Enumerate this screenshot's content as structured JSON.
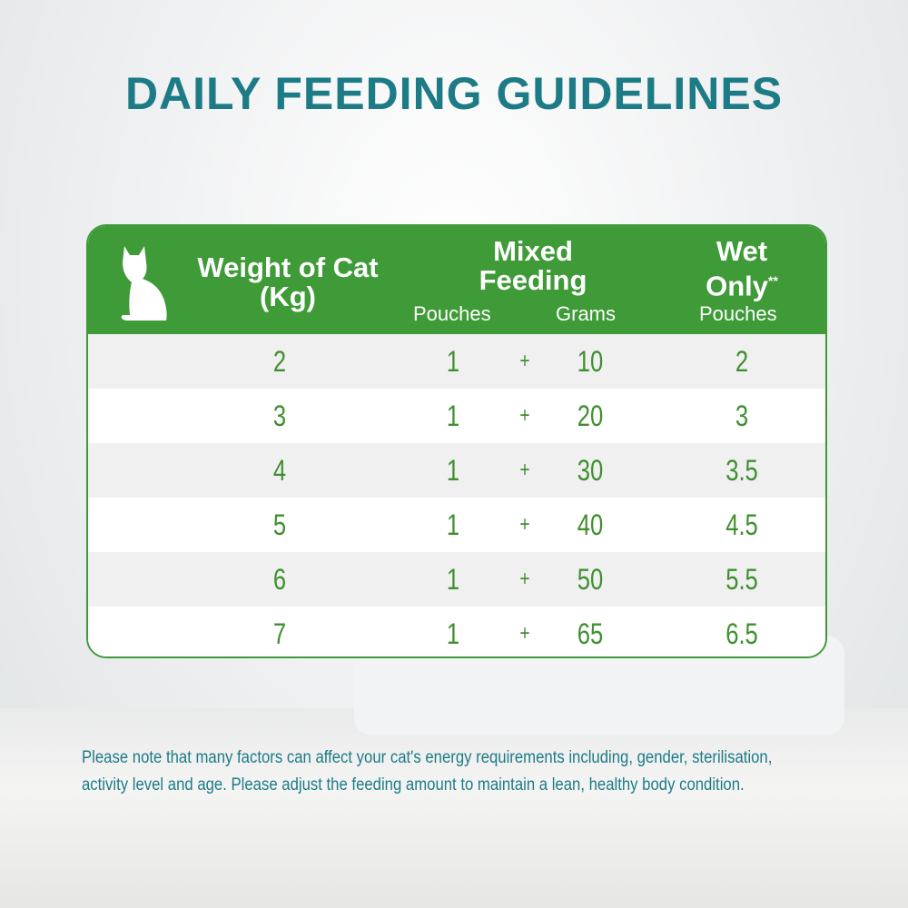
{
  "title": "DAILY FEEDING GUIDELINES",
  "table": {
    "header": {
      "weight": [
        "Weight of Cat",
        "(Kg)"
      ],
      "mixed": [
        "Mixed",
        "Feeding"
      ],
      "mixed_pouches": "Pouches",
      "mixed_grams": "Grams",
      "wet": [
        "Wet",
        "Only"
      ],
      "wet_mark": "**",
      "wet_pouches": "Pouches"
    },
    "rows": [
      [
        2,
        1,
        "+",
        10,
        2
      ],
      [
        3,
        1,
        "+",
        20,
        3
      ],
      [
        4,
        1,
        "+",
        30,
        3.5
      ],
      [
        5,
        1,
        "+",
        40,
        4.5
      ],
      [
        6,
        1,
        "+",
        50,
        5.5
      ],
      [
        7,
        1,
        "+",
        65,
        6.5
      ]
    ]
  },
  "note": [
    "Please note that many factors can affect your cat's energy requirements including, gender, sterilisation,",
    "activity level and age. Please adjust the feeding amount to maintain a lean, healthy body condition."
  ]
}
